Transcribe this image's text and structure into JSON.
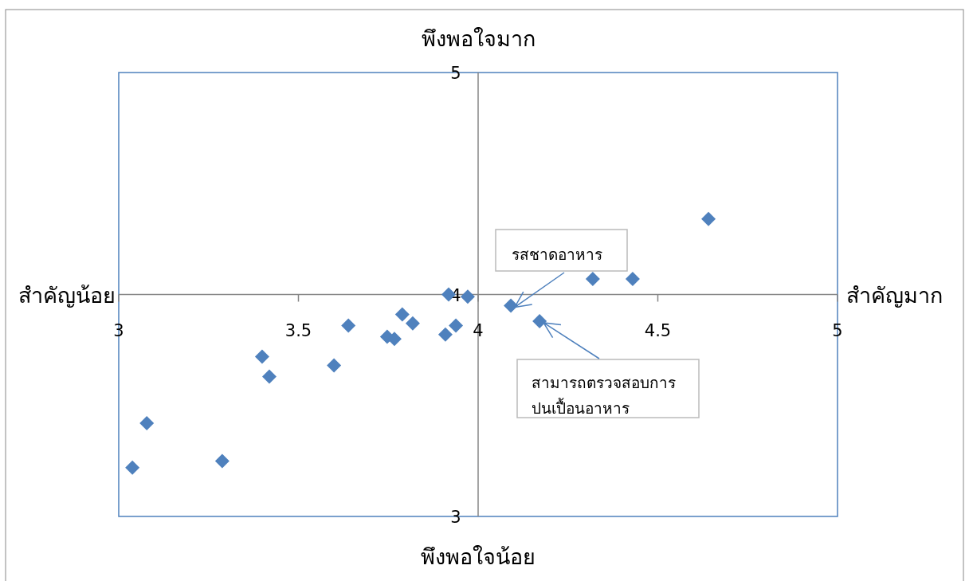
{
  "chart_data": {
    "type": "scatter",
    "marker": "diamond",
    "grid": false,
    "x": [
      3.038,
      3.078,
      3.288,
      3.399,
      3.419,
      3.599,
      3.639,
      3.747,
      3.767,
      3.789,
      3.818,
      3.909,
      3.918,
      3.938,
      3.971,
      4.091,
      4.171,
      4.319,
      4.43,
      4.641
    ],
    "series": [
      {
        "color": "#4f81bd",
        "values": [
          3.22,
          3.42,
          3.25,
          3.72,
          3.63,
          3.68,
          3.86,
          3.81,
          3.8,
          3.91,
          3.87,
          3.82,
          4.0,
          3.86,
          3.99,
          3.95,
          3.88,
          4.07,
          4.07,
          4.34
        ]
      }
    ],
    "xlim": [
      3,
      5
    ],
    "ylim": [
      3,
      5
    ],
    "xticks": [
      3,
      3.5,
      4,
      4.5,
      5
    ],
    "yticks": [
      3,
      4,
      5
    ],
    "annotations": [
      "พึงพอใจมาก",
      "พึงพอใจน้อย",
      "สำคัญน้อย",
      "สำคัญมาก",
      {
        "text": "รสชาดอาหาร",
        "x": 4.091,
        "y": 3.95
      },
      {
        "text": "สามารถตรวจสอบการปนเปื้อนอาหาร",
        "x": 4.171,
        "y": 3.88
      }
    ]
  }
}
